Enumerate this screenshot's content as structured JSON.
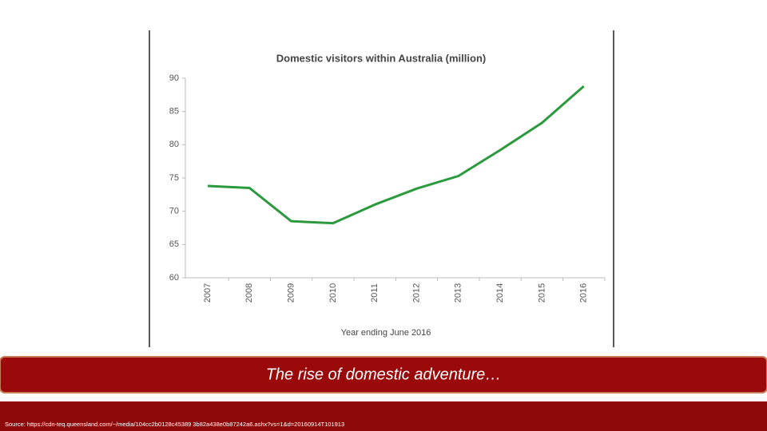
{
  "chart_data": {
    "type": "line",
    "title": "Domestic visitors within Australia (million)",
    "x_label": "Year ending June 2016",
    "categories": [
      "2007",
      "2008",
      "2009",
      "2010",
      "2011",
      "2012",
      "2013",
      "2014",
      "2015",
      "2016"
    ],
    "values": [
      73.8,
      73.5,
      68.5,
      68.2,
      71,
      73.4,
      75.3,
      79.2,
      83.3,
      88.8
    ],
    "color": "#2b9a3e",
    "ylim": [
      60,
      90
    ],
    "yticks": [
      60,
      65,
      70,
      75,
      80,
      85,
      90
    ],
    "grid": false
  },
  "slide": {
    "caption": "The rise of domestic adventure…",
    "source": "Source: https://cdn-teq.queensland.com/~/media/104cc2b0128c45389 3b82a438e0b87242a6.ashx?vs=1&d=20160914T101913"
  }
}
